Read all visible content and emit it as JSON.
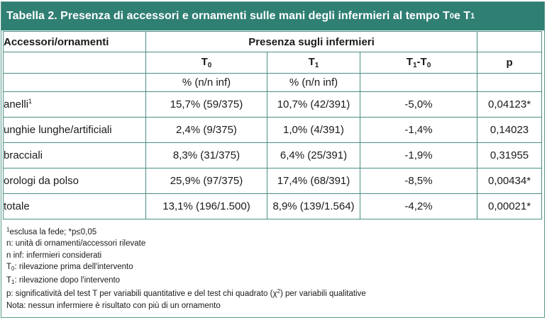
{
  "title": {
    "prefix": "Tabella 2. Presenza di accessori e ornamenti sulle mani degli infermieri al tempo T",
    "sub0": "0",
    "mid": " e T",
    "sub1": "1"
  },
  "table": {
    "header": {
      "col_label": "Accessori/ornamenti",
      "group_label": "Presenza sugli infermieri",
      "t0": {
        "base": "T",
        "sub": "0"
      },
      "t1": {
        "base": "T",
        "sub": "1"
      },
      "diff": {
        "a": "T",
        "a_sub": "1",
        "dash": "-T",
        "b_sub": "0"
      },
      "p": "p",
      "unit_t0": "% (n/n inf)",
      "unit_t1": "% (n/n inf)"
    },
    "rows": [
      {
        "label": "anelli",
        "label_sup": "1",
        "t0": "15,7% (59/375)",
        "t1": "10,7% (42/391)",
        "diff": "-5,0%",
        "p": "0,04123*"
      },
      {
        "label": "unghie lunghe/artificiali",
        "label_sup": "",
        "t0": "2,4% (9/375)",
        "t1": "1,0% (4/391)",
        "diff": "-1,4%",
        "p": "0,14023"
      },
      {
        "label": "bracciali",
        "label_sup": "",
        "t0": "8,3% (31/375)",
        "t1": "6,4% (25/391)",
        "diff": "-1,9%",
        "p": "0,31955"
      },
      {
        "label": "orologi da polso",
        "label_sup": "",
        "t0": "25,9% (97/375)",
        "t1": "17,4% (68/391)",
        "diff": "-8,5%",
        "p": "0,00434*"
      },
      {
        "label": "totale",
        "label_sup": "",
        "t0": "13,1% (196/1.500)",
        "t1": "8,9% (139/1.564)",
        "diff": "-4,2%",
        "p": "0,00021*"
      }
    ]
  },
  "notes": {
    "n1": {
      "sup": "1",
      "text": "esclusa la fede; *p≤0,05"
    },
    "n2": "n: unità di ornamenti/accessori rilevate",
    "n3": "n inf: infermieri considerati",
    "n4": {
      "base": "T",
      "sub": "0",
      "text": ": rilevazione prima dell'intervento"
    },
    "n5": {
      "base": "T",
      "sub": "1",
      "text": ": rilevazione dopo l'intervento"
    },
    "n6": {
      "before": "p: significatività del test T per variabili quantitative e del test chi quadrato (χ",
      "sup": "2",
      "after": ") per variabili qualitative"
    },
    "n7": "Nota: nessun infermiere è risultato con più di un ornamento"
  },
  "colors": {
    "title_bg": "#2f7f73",
    "title_text": "#ffffff",
    "border": "#4a8e84"
  }
}
